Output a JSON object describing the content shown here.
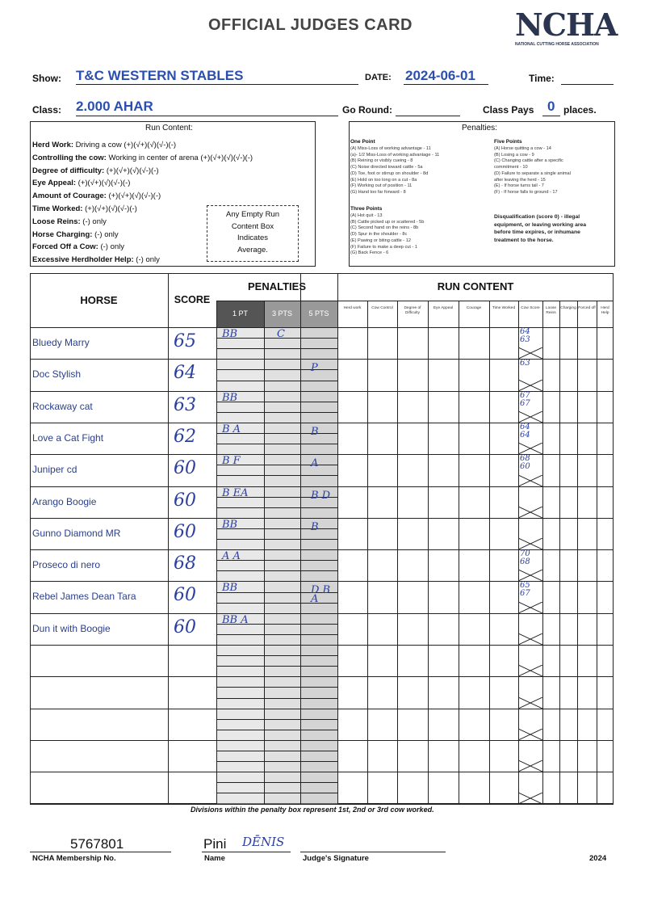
{
  "header": {
    "title": "OFFICIAL JUDGES CARD",
    "logo": "NCHA",
    "logo_sub": "NATIONAL CUTTING HORSE ASSOCIATION",
    "show_label": "Show:",
    "show": "T&C WESTERN STABLES",
    "date_label": "DATE:",
    "date": "2024-06-01",
    "time_label": "Time:",
    "class_label": "Class:",
    "class": "2.000 AHAR",
    "go_round_label": "Go Round:",
    "class_pays_label": "Class Pays",
    "class_pays": "0",
    "places": "places."
  },
  "run_content": {
    "title": "Run Content:",
    "items": [
      {
        "label": "Herd Work:",
        "text": "Driving a cow (+)(√+)(√)(√-)(-)"
      },
      {
        "label": "Controlling the cow:",
        "text": "Working in center of arena (+)(√+)(√)(√-)(-)"
      },
      {
        "label": "Degree of difficulty:",
        "text": "(+)(√+)(√)(√-)(-)"
      },
      {
        "label": "Eye Appeal:",
        "text": "(+)(√+)(√)(√-)(-)"
      },
      {
        "label": "Amount of Courage:",
        "text": "(+)(√+)(√)(√-)(-)"
      },
      {
        "label": "Time Worked:",
        "text": "(+)(√+)(√)(√-)(-)"
      },
      {
        "label": "Loose Reins:",
        "text": "(-) only"
      },
      {
        "label": "Horse Charging:",
        "text": "(-) only"
      },
      {
        "label": "Forced Off a Cow:",
        "text": "(-) only"
      },
      {
        "label": "Excessive Herdholder Help:",
        "text": "(-) only"
      }
    ],
    "note": [
      "Any Empty Run",
      "Content Box",
      "Indicates",
      "Average."
    ]
  },
  "penalties_box": {
    "title": "Penalties:",
    "one_point": {
      "title": "One Point",
      "items": [
        "(A) Miss-Loss of working advantage - 11",
        "(a)- 1/2 Miss-Loss of working advantage - 11",
        "(B) Reining or visibly cueing - 8",
        "(C) Noise directed toward cattle - 5a",
        "(D) Toe, foot or stirrup on shoulder - 8d",
        "(E) Hold on too long on a cut - 8a",
        "(F) Working out of position - 11",
        "(G) Hand too far forward - 8"
      ]
    },
    "three_points": {
      "title": "Three Points",
      "items": [
        "(A) Hot quit - 13",
        "(B) Cattle picked up or scattered - 5b",
        "(C) Second hand on the reins - 8b",
        "(D) Spur in the shoulder - 8c",
        "(E) Pawing or biting cattle - 12",
        "(F) Failure to make a deep cut - 1",
        "(G) Back Fence - 6"
      ]
    },
    "five_points": {
      "title": "Five Points",
      "items": [
        "(A) Horse quitting a cow - 14",
        "(B) Losing a cow - 9",
        "(C) Changing cattle after a specific",
        "commitment - 10",
        "(D) Failure to separate a single animal",
        "after leaving the herd - 15",
        "(E) - If horse turns tail - 7",
        "(F) - If horse falls to ground - 17"
      ]
    },
    "disqualification": [
      "Disqualification (score 0) - illegal",
      "equipment, or leaving working area",
      "before time expires, or inhumane",
      "treatment to the horse."
    ]
  },
  "table": {
    "horse": "HORSE",
    "score": "SCORE",
    "penalties": "PENALTIES",
    "penalty_columns": [
      "1 PT",
      "3 PTS",
      "5 PTS"
    ],
    "run_content": "RUN CONTENT",
    "run_columns": [
      "Herd work",
      "Cow Control",
      "Degree of Difficulty",
      "Eye Appeal",
      "Courage",
      "Time Worked",
      "Cow Score",
      "Loose Reins",
      "Charging",
      "Forced off",
      "Herd Help"
    ],
    "rows": [
      {
        "horse": "Bluedy Marry",
        "score": "65",
        "pen_1": "BB",
        "pen_3": "C",
        "cow_score": "64 63"
      },
      {
        "horse": "Doc Stylish",
        "score": "64",
        "pen_5": "P",
        "cow_score": "63"
      },
      {
        "horse": "Rockaway cat",
        "score": "63",
        "pen_1": "BB",
        "cow_score": "67 67"
      },
      {
        "horse": "Love a Cat Fight",
        "score": "62",
        "pen_1": "B A",
        "pen_5": "B",
        "cow_score": "64 64"
      },
      {
        "horse": "Juniper cd",
        "score": "60",
        "pen_1": "B F",
        "pen_5": "A",
        "cow_score": "68 60"
      },
      {
        "horse": "Arango Boogie",
        "score": "60",
        "pen_1": "B EA",
        "pen_5": "B D"
      },
      {
        "horse": "Gunno Diamond MR",
        "score": "60",
        "pen_1": "BB",
        "pen_5": "B"
      },
      {
        "horse": "Proseco di nero",
        "score": "68",
        "pen_1": "A A",
        "cow_score": "70 68"
      },
      {
        "horse": "Rebel James Dean Tara",
        "score": "60",
        "pen_1": "BB",
        "pen_5": "D B A",
        "cow_score": "65 67"
      },
      {
        "horse": "Dun it with Boogie",
        "score": "60",
        "pen_1": "BB A"
      }
    ]
  },
  "footer": {
    "note": "Divisions within the penalty box represent 1st, 2nd or 3rd cow worked.",
    "membership": "5767801",
    "membership_label": "NCHA Membership No.",
    "name": "Pini",
    "name_hand": "DĒNIS",
    "name_label": "Name",
    "signature_label": "Judge's Signature",
    "year": "2024"
  }
}
